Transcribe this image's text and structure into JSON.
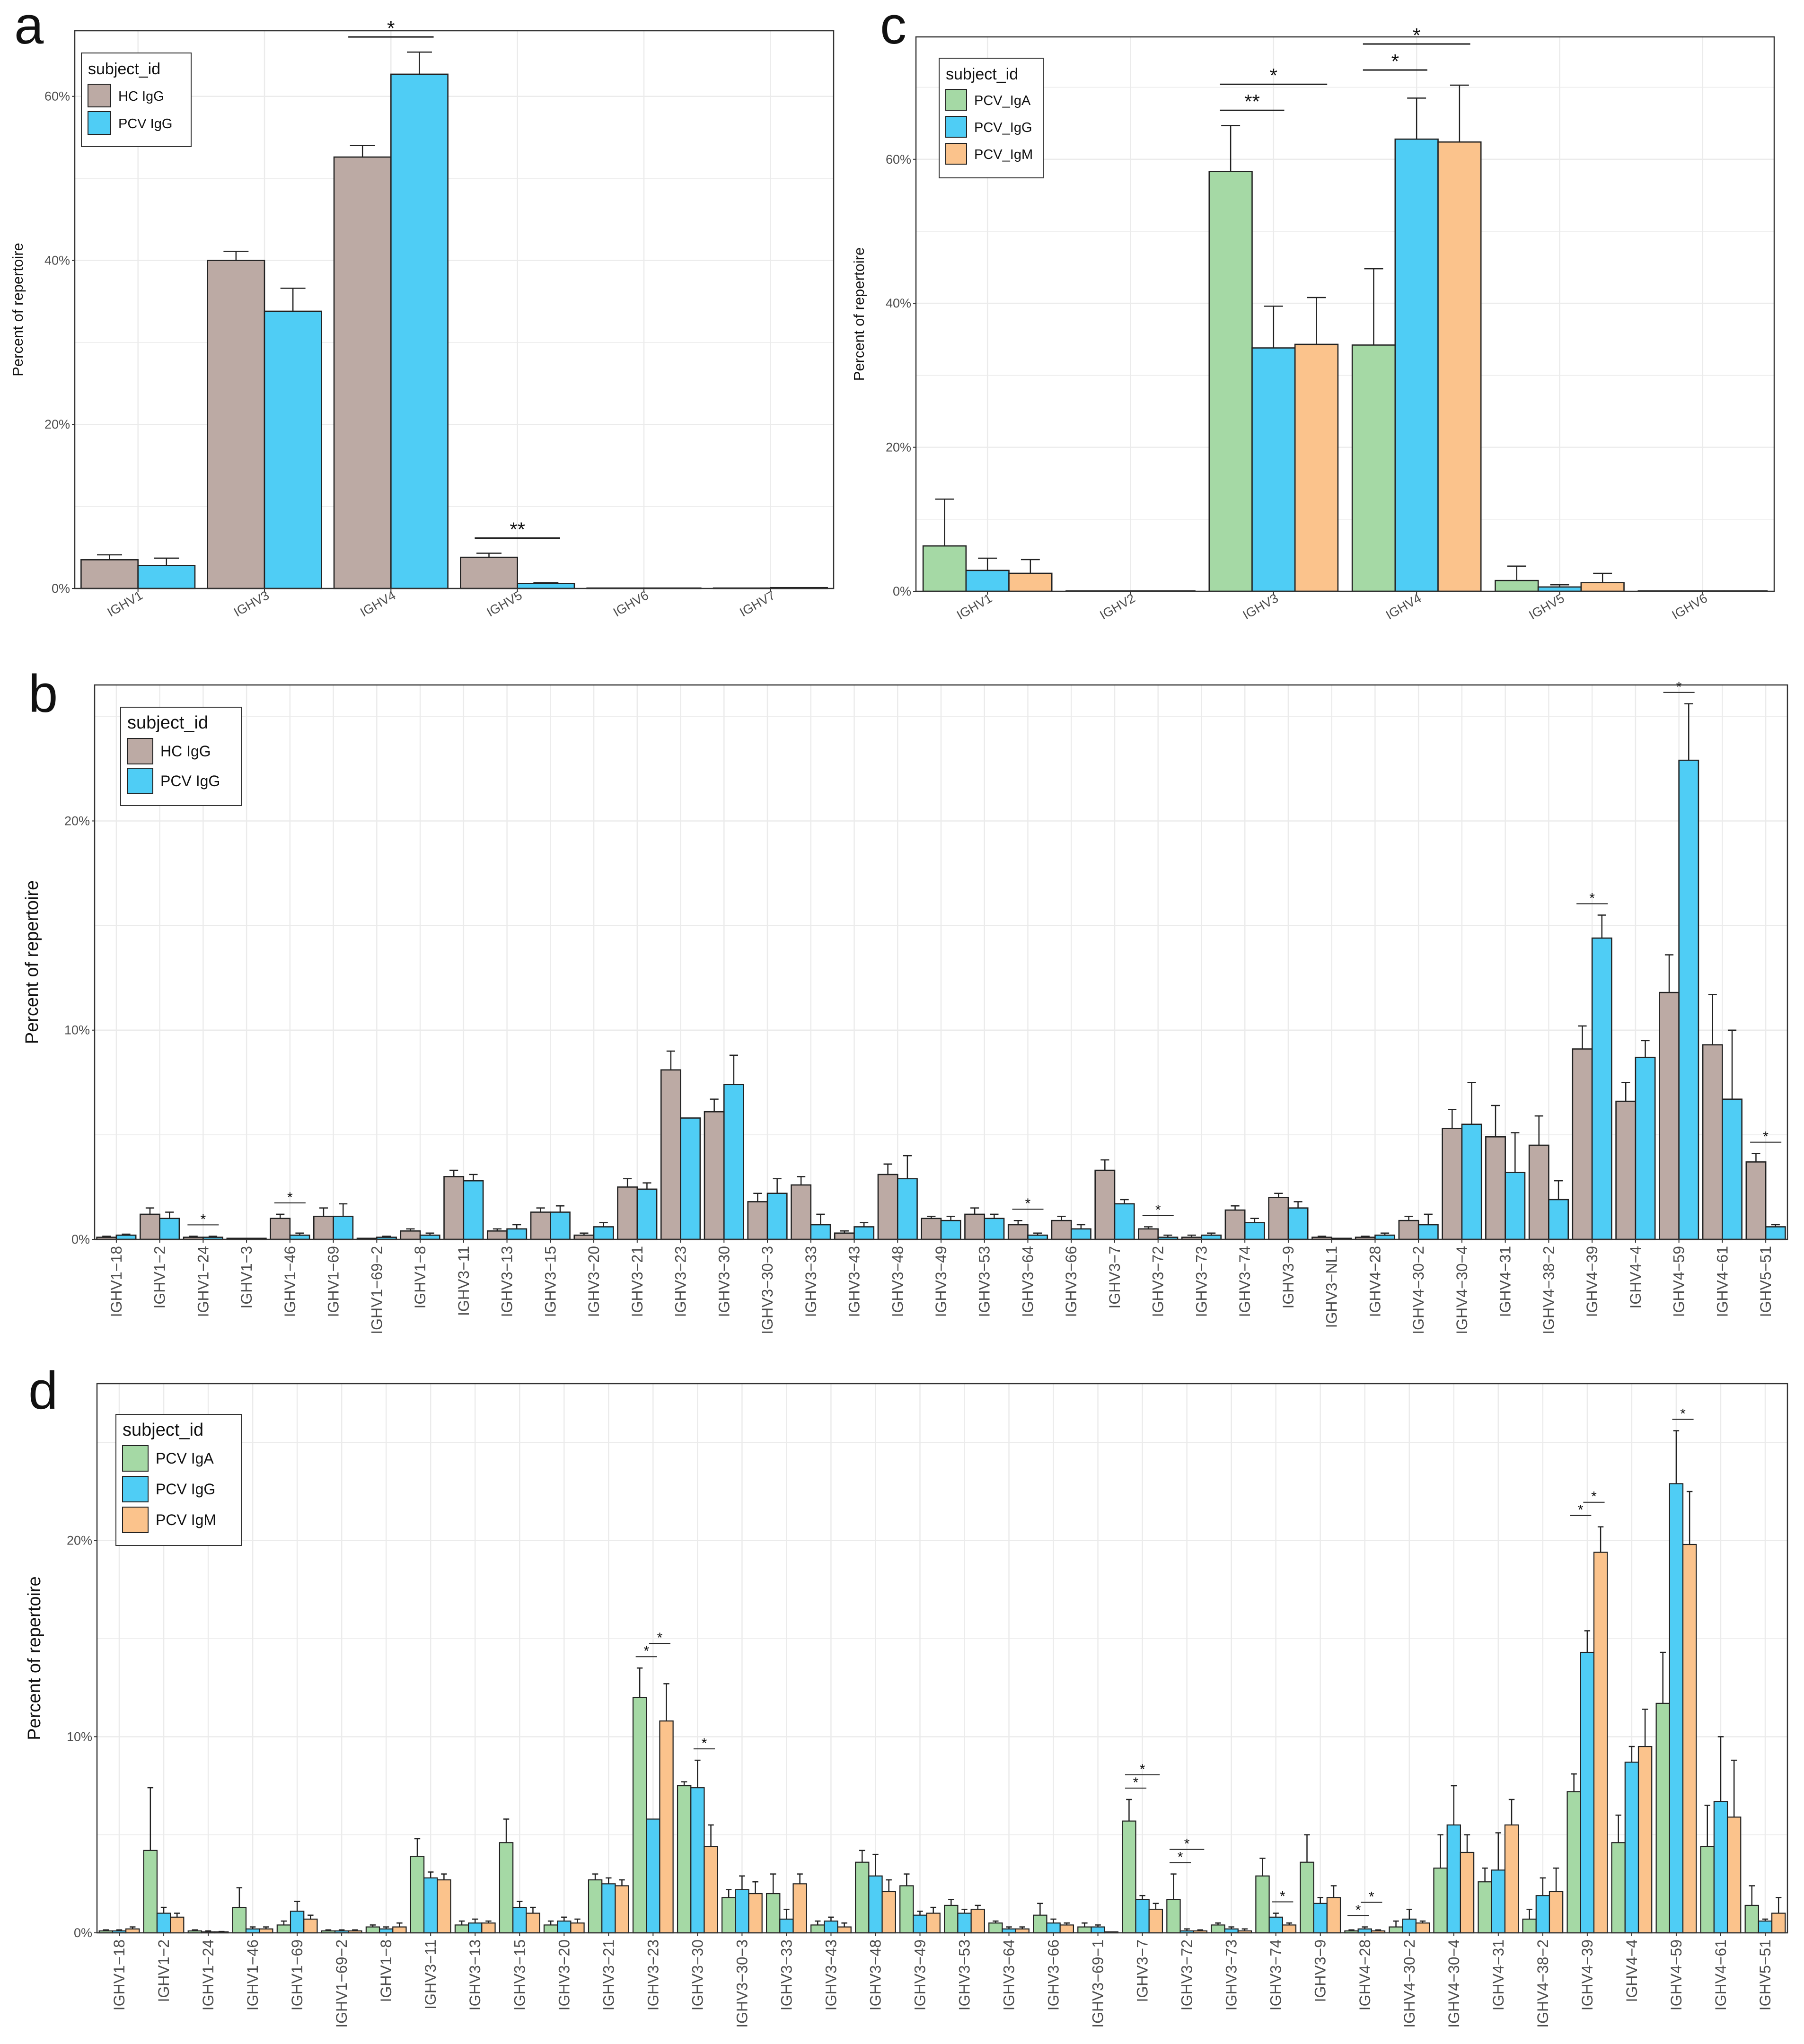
{
  "figure": {
    "panel_letters": [
      "a",
      "c",
      "b",
      "d"
    ]
  },
  "colors": {
    "HC_IgG": "#bcaaa4",
    "PCV_IgA": "#a5d9a5",
    "PCV_IgG": "#4fcdf5",
    "PCV_IgM": "#fbc38c",
    "grid": "#ebebeb",
    "axis": "#333333"
  },
  "chart_data": [
    {
      "id": "a",
      "type": "bar",
      "title": "",
      "xlabel": "",
      "ylabel": "Percent of repertoire",
      "ylim": [
        0,
        68
      ],
      "yticks": [
        0,
        20,
        40,
        60
      ],
      "ytick_labels": [
        "0%",
        "20%",
        "40%",
        "60%"
      ],
      "legend_title": "subject_id",
      "legend_position": "top-left",
      "categories": [
        "IGHV1",
        "IGHV3",
        "IGHV4",
        "IGHV5",
        "IGHV6",
        "IGHV7"
      ],
      "series": [
        {
          "name": "HC IgG",
          "color_key": "HC_IgG",
          "values": [
            3.5,
            40.0,
            52.6,
            3.8,
            0.05,
            0.05
          ],
          "err": [
            0.6,
            1.1,
            1.4,
            0.5,
            0,
            0
          ]
        },
        {
          "name": "PCV  IgG",
          "color_key": "PCV_IgG",
          "values": [
            2.8,
            33.8,
            62.7,
            0.6,
            0.05,
            0.1
          ],
          "err": [
            0.9,
            2.8,
            2.7,
            0.1,
            0,
            0
          ]
        }
      ],
      "significance": [
        {
          "category": "IGHV4",
          "pairs": [
            [
              0,
              1
            ]
          ],
          "labels": [
            "*"
          ]
        },
        {
          "category": "IGHV5",
          "pairs": [
            [
              0,
              1
            ]
          ],
          "labels": [
            "**"
          ]
        }
      ]
    },
    {
      "id": "c",
      "type": "bar",
      "title": "",
      "xlabel": "",
      "ylabel": "Percent of repertoire",
      "ylim": [
        0,
        77
      ],
      "yticks": [
        0,
        20,
        40,
        60
      ],
      "ytick_labels": [
        "0%",
        "20%",
        "40%",
        "60%"
      ],
      "legend_title": "subject_id",
      "legend_position": "top-left",
      "categories": [
        "IGHV1",
        "IGHV2",
        "IGHV3",
        "IGHV4",
        "IGHV5",
        "IGHV6"
      ],
      "series": [
        {
          "name": "PCV_IgA",
          "color_key": "PCV_IgA",
          "values": [
            6.3,
            0.05,
            58.3,
            34.2,
            1.5,
            0.05
          ],
          "err": [
            6.5,
            0,
            6.4,
            10.6,
            2.0,
            0
          ]
        },
        {
          "name": "PCV_IgG",
          "color_key": "PCV_IgG",
          "values": [
            2.9,
            0.05,
            33.8,
            62.8,
            0.6,
            0.05
          ],
          "err": [
            1.7,
            0,
            5.8,
            5.7,
            0.3,
            0
          ]
        },
        {
          "name": "PCV_IgM",
          "color_key": "PCV_IgM",
          "values": [
            2.5,
            0.05,
            34.3,
            62.4,
            1.2,
            0.05
          ],
          "err": [
            1.9,
            0,
            6.5,
            7.9,
            1.3,
            0
          ]
        }
      ],
      "significance": [
        {
          "category": "IGHV3",
          "pairs": [
            [
              0,
              1
            ],
            [
              0,
              2
            ]
          ],
          "labels": [
            "**",
            "*"
          ]
        },
        {
          "category": "IGHV4",
          "pairs": [
            [
              0,
              1
            ],
            [
              0,
              2
            ]
          ],
          "labels": [
            "*",
            "*"
          ]
        }
      ]
    },
    {
      "id": "b",
      "type": "bar",
      "title": "",
      "xlabel": "",
      "ylabel": "Percent of repertoire",
      "ylim": [
        0,
        26.5
      ],
      "yticks": [
        0,
        10,
        20
      ],
      "ytick_labels": [
        "0%",
        "10%",
        "20%"
      ],
      "legend_title": "subject_id",
      "legend_position": "top-left",
      "categories": [
        "IGHV1−18",
        "IGHV1−2",
        "IGHV1−24",
        "IGHV1−3",
        "IGHV1−46",
        "IGHV1−69",
        "IGHV1−69−2",
        "IGHV1−8",
        "IGHV3−11",
        "IGHV3−13",
        "IGHV3−15",
        "IGHV3−20",
        "IGHV3−21",
        "IGHV3−23",
        "IGHV3−30",
        "IGHV3−30−3",
        "IGHV3−33",
        "IGHV3−43",
        "IGHV3−48",
        "IGHV3−49",
        "IGHV3−53",
        "IGHV3−64",
        "IGHV3−66",
        "IGHV3−7",
        "IGHV3−72",
        "IGHV3−73",
        "IGHV3−74",
        "IGHV3−9",
        "IGHV3−NL1",
        "IGHV4−28",
        "IGHV4−30−2",
        "IGHV4−30−4",
        "IGHV4−31",
        "IGHV4−38−2",
        "IGHV4−39",
        "IGHV4−4",
        "IGHV4−59",
        "IGHV4−61",
        "IGHV5−51"
      ],
      "series": [
        {
          "name": "HC IgG",
          "color_key": "HC_IgG",
          "values": [
            0.1,
            1.2,
            0.1,
            0.05,
            1.0,
            1.1,
            0.05,
            0.4,
            3.0,
            0.4,
            1.3,
            0.2,
            2.5,
            8.1,
            6.1,
            1.8,
            2.6,
            0.3,
            3.1,
            1.0,
            1.2,
            0.7,
            0.9,
            3.3,
            0.5,
            0.1,
            1.4,
            2.0,
            0.1,
            0.1,
            0.9,
            5.3,
            4.9,
            4.5,
            9.1,
            6.6,
            11.8,
            9.3,
            3.7
          ],
          "err": [
            0.05,
            0.3,
            0.05,
            0,
            0.2,
            0.4,
            0,
            0.1,
            0.3,
            0.1,
            0.2,
            0.1,
            0.4,
            0.9,
            0.6,
            0.4,
            0.4,
            0.1,
            0.5,
            0.1,
            0.3,
            0.2,
            0.2,
            0.5,
            0.1,
            0.1,
            0.2,
            0.2,
            0.05,
            0.05,
            0.2,
            0.9,
            1.5,
            1.4,
            1.1,
            0.9,
            1.8,
            2.4,
            0.4
          ]
        },
        {
          "name": "PCV  IgG",
          "color_key": "PCV_IgG",
          "values": [
            0.2,
            1.0,
            0.1,
            0.05,
            0.2,
            1.1,
            0.1,
            0.2,
            2.8,
            0.5,
            1.3,
            0.6,
            2.4,
            5.8,
            7.4,
            2.2,
            0.7,
            0.6,
            2.9,
            0.9,
            1.0,
            0.2,
            0.5,
            1.7,
            0.1,
            0.2,
            0.8,
            1.5,
            0.05,
            0.2,
            0.7,
            5.5,
            3.2,
            1.9,
            14.4,
            8.7,
            22.9,
            6.7,
            0.6
          ],
          "err": [
            0.05,
            0.3,
            0.05,
            0,
            0.1,
            0.6,
            0.05,
            0.1,
            0.3,
            0.2,
            0.3,
            0.2,
            0.3,
            0,
            1.4,
            0.7,
            0.5,
            0.2,
            1.1,
            0.2,
            0.2,
            0.1,
            0.2,
            0.2,
            0.1,
            0.1,
            0.2,
            0.3,
            0,
            0.1,
            0.5,
            2.0,
            1.9,
            0.9,
            1.1,
            0.8,
            2.7,
            3.3,
            0.1
          ]
        }
      ],
      "significance": [
        {
          "category_index": 2,
          "pairs": [
            [
              0,
              1
            ]
          ],
          "labels": [
            "*"
          ]
        },
        {
          "category_index": 4,
          "pairs": [
            [
              0,
              1
            ]
          ],
          "labels": [
            "*"
          ]
        },
        {
          "category_index": 21,
          "pairs": [
            [
              0,
              1
            ]
          ],
          "labels": [
            "*"
          ]
        },
        {
          "category_index": 24,
          "pairs": [
            [
              0,
              1
            ]
          ],
          "labels": [
            "*"
          ]
        },
        {
          "category_index": 34,
          "pairs": [
            [
              0,
              1
            ]
          ],
          "labels": [
            "*"
          ]
        },
        {
          "category_index": 36,
          "pairs": [
            [
              0,
              1
            ]
          ],
          "labels": [
            "*"
          ]
        },
        {
          "category_index": 38,
          "pairs": [
            [
              0,
              1
            ]
          ],
          "labels": [
            "*"
          ]
        }
      ]
    },
    {
      "id": "d",
      "type": "bar",
      "title": "",
      "xlabel": "",
      "ylabel": "Percent of repertoire",
      "ylim": [
        0,
        28
      ],
      "yticks": [
        0,
        10,
        20
      ],
      "ytick_labels": [
        "0%",
        "10%",
        "20%"
      ],
      "legend_title": "subject_id",
      "legend_position": "top-left",
      "categories": [
        "IGHV1−18",
        "IGHV1−2",
        "IGHV1−24",
        "IGHV1−46",
        "IGHV1−69",
        "IGHV1−69−2",
        "IGHV1−8",
        "IGHV3−11",
        "IGHV3−13",
        "IGHV3−15",
        "IGHV3−20",
        "IGHV3−21",
        "IGHV3−23",
        "IGHV3−30",
        "IGHV3−30−3",
        "IGHV3−33",
        "IGHV3−43",
        "IGHV3−48",
        "IGHV3−49",
        "IGHV3−53",
        "IGHV3−64",
        "IGHV3−66",
        "IGHV3−69−1",
        "IGHV3−7",
        "IGHV3−72",
        "IGHV3−73",
        "IGHV3−74",
        "IGHV3−9",
        "IGHV4−28",
        "IGHV4−30−2",
        "IGHV4−30−4",
        "IGHV4−31",
        "IGHV4−38−2",
        "IGHV4−39",
        "IGHV4−4",
        "IGHV4−59",
        "IGHV4−61",
        "IGHV5−51"
      ],
      "series": [
        {
          "name": "PCV  IgA",
          "color_key": "PCV_IgA",
          "values": [
            0.1,
            4.2,
            0.1,
            1.3,
            0.4,
            0.1,
            0.3,
            3.9,
            0.4,
            4.6,
            0.4,
            2.7,
            12.0,
            7.5,
            1.8,
            2.0,
            0.4,
            3.6,
            2.4,
            1.4,
            0.5,
            0.9,
            0.3,
            5.7,
            1.7,
            0.4,
            2.9,
            3.6,
            0.1,
            0.3,
            3.3,
            2.6,
            0.7,
            7.2,
            4.6,
            11.7,
            4.4,
            1.4
          ],
          "err": [
            0.05,
            3.2,
            0.05,
            1.0,
            0.2,
            0.05,
            0.1,
            0.9,
            0.2,
            1.2,
            0.2,
            0.3,
            1.5,
            0.2,
            0.4,
            1.0,
            0.2,
            0.6,
            0.6,
            0.3,
            0.1,
            0.6,
            0.2,
            1.1,
            1.3,
            0.1,
            0.9,
            1.4,
            0.05,
            0.3,
            1.7,
            0.7,
            0.5,
            0.9,
            1.4,
            2.6,
            2.1,
            1.0
          ]
        },
        {
          "name": "PCV  IgG",
          "color_key": "PCV_IgG",
          "values": [
            0.1,
            1.0,
            0.05,
            0.2,
            1.1,
            0.1,
            0.2,
            2.8,
            0.5,
            1.3,
            0.6,
            2.5,
            5.8,
            7.4,
            2.2,
            0.7,
            0.6,
            2.9,
            0.9,
            1.0,
            0.2,
            0.5,
            0.3,
            1.7,
            0.1,
            0.2,
            0.8,
            1.5,
            0.2,
            0.7,
            5.5,
            3.2,
            1.9,
            14.3,
            8.7,
            22.9,
            6.7,
            0.6
          ],
          "err": [
            0.05,
            0.3,
            0.05,
            0.1,
            0.5,
            0.05,
            0.1,
            0.3,
            0.2,
            0.3,
            0.2,
            0.3,
            0,
            1.4,
            0.7,
            0.5,
            0.2,
            1.1,
            0.2,
            0.2,
            0.1,
            0.2,
            0.1,
            0.2,
            0.1,
            0.1,
            0.2,
            0.3,
            0.1,
            0.5,
            2.0,
            1.9,
            0.9,
            1.1,
            0.8,
            2.7,
            3.3,
            0.1
          ]
        },
        {
          "name": "PCV  IgM",
          "color_key": "PCV_IgM",
          "values": [
            0.2,
            0.8,
            0.05,
            0.2,
            0.7,
            0.1,
            0.3,
            2.7,
            0.5,
            1.0,
            0.5,
            2.4,
            10.8,
            4.4,
            2.0,
            2.5,
            0.3,
            2.1,
            1.0,
            1.2,
            0.2,
            0.4,
            0.05,
            1.2,
            0.1,
            0.1,
            0.4,
            1.8,
            0.1,
            0.5,
            4.1,
            5.5,
            2.1,
            19.4,
            9.5,
            19.8,
            5.9,
            1.0
          ],
          "err": [
            0.1,
            0.2,
            0.02,
            0.1,
            0.2,
            0.05,
            0.2,
            0.3,
            0.1,
            0.3,
            0.2,
            0.3,
            1.9,
            1.1,
            0.6,
            0.5,
            0.2,
            0.6,
            0.3,
            0.2,
            0.1,
            0.1,
            0,
            0.3,
            0.05,
            0.1,
            0.1,
            0.6,
            0.05,
            0.1,
            0.9,
            1.3,
            1.2,
            1.3,
            1.9,
            2.7,
            2.9,
            0.8
          ]
        }
      ],
      "significance": [
        {
          "category_index": 12,
          "pairs": [
            [
              0,
              1
            ],
            [
              1,
              2
            ]
          ],
          "labels": [
            "*",
            "*"
          ]
        },
        {
          "category_index": 13,
          "pairs": [
            [
              1,
              2
            ]
          ],
          "labels": [
            "*"
          ]
        },
        {
          "category_index": 23,
          "pairs": [
            [
              0,
              1
            ],
            [
              0,
              2
            ]
          ],
          "labels": [
            "*",
            "*"
          ]
        },
        {
          "category_index": 24,
          "pairs": [
            [
              0,
              1
            ],
            [
              0,
              2
            ]
          ],
          "labels": [
            "*",
            "*"
          ]
        },
        {
          "category_index": 26,
          "pairs": [
            [
              1,
              2
            ]
          ],
          "labels": [
            "*"
          ]
        },
        {
          "category_index": 28,
          "pairs": [
            [
              0,
              1
            ],
            [
              1,
              2
            ]
          ],
          "labels": [
            "*",
            "*"
          ]
        },
        {
          "category_index": 33,
          "pairs": [
            [
              0,
              1
            ],
            [
              1,
              2
            ]
          ],
          "labels": [
            "*",
            "*"
          ]
        },
        {
          "category_index": 35,
          "pairs": [
            [
              1,
              2
            ]
          ],
          "labels": [
            "*"
          ]
        }
      ]
    }
  ]
}
